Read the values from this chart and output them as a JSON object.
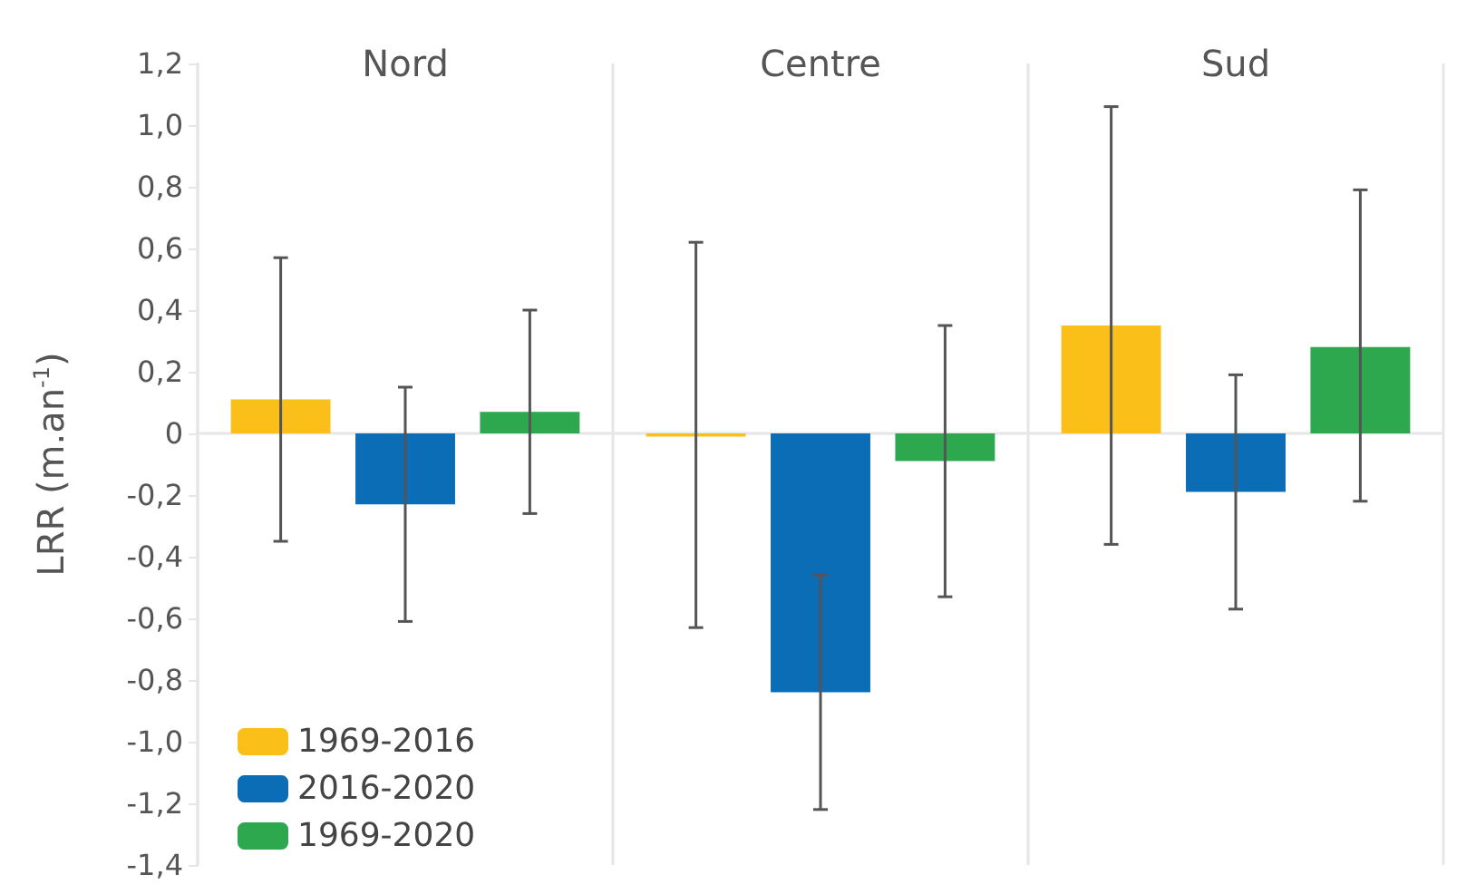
{
  "chart_data": {
    "type": "bar",
    "ylabel": "LRR (m.an$^{-1}$)",
    "categories": [
      "Nord",
      "Centre",
      "Sud"
    ],
    "series": [
      {
        "name": "1969-2016",
        "color": "#fbbf1a",
        "values": [
          0.11,
          -0.01,
          0.35
        ],
        "errors": [
          [
            -0.35,
            0.57
          ],
          [
            -0.63,
            0.62
          ],
          [
            -0.36,
            1.06
          ]
        ]
      },
      {
        "name": "2016-2020",
        "color": "#0a6db5",
        "values": [
          -0.23,
          -0.84,
          -0.19
        ],
        "errors": [
          [
            -0.61,
            0.15
          ],
          [
            -1.22,
            -0.46
          ],
          [
            -0.57,
            0.19
          ]
        ]
      },
      {
        "name": "1969-2020",
        "color": "#2ea84f",
        "values": [
          0.07,
          -0.09,
          0.28
        ],
        "errors": [
          [
            -0.26,
            0.4
          ],
          [
            -0.53,
            0.35
          ],
          [
            -0.22,
            0.79
          ]
        ]
      }
    ],
    "ylim": [
      -1.4,
      1.2
    ],
    "yticks": [
      {
        "value": -1.4,
        "label": "-1,4"
      },
      {
        "value": -1.2,
        "label": "-1,2"
      },
      {
        "value": -1,
        "label": "-1,0"
      },
      {
        "value": -0.8,
        "label": "-0,8"
      },
      {
        "value": -0.6,
        "label": "-0,6"
      },
      {
        "value": -0.4,
        "label": "-0,4"
      },
      {
        "value": -0.2,
        "label": "-0,2"
      },
      {
        "value": 0,
        "label": "0"
      },
      {
        "value": 0.2,
        "label": "0,2"
      },
      {
        "value": 0.4,
        "label": "0,4"
      },
      {
        "value": 0.6,
        "label": "0,6"
      },
      {
        "value": 0.8,
        "label": "0,8"
      },
      {
        "value": 1,
        "label": "1,0"
      },
      {
        "value": 1.2,
        "label": "1,2"
      }
    ],
    "ref_lines": [
      {
        "axis": "y",
        "value": 0,
        "color": "#e6e6e6"
      }
    ],
    "grid": "x",
    "legend": "bottom left"
  }
}
